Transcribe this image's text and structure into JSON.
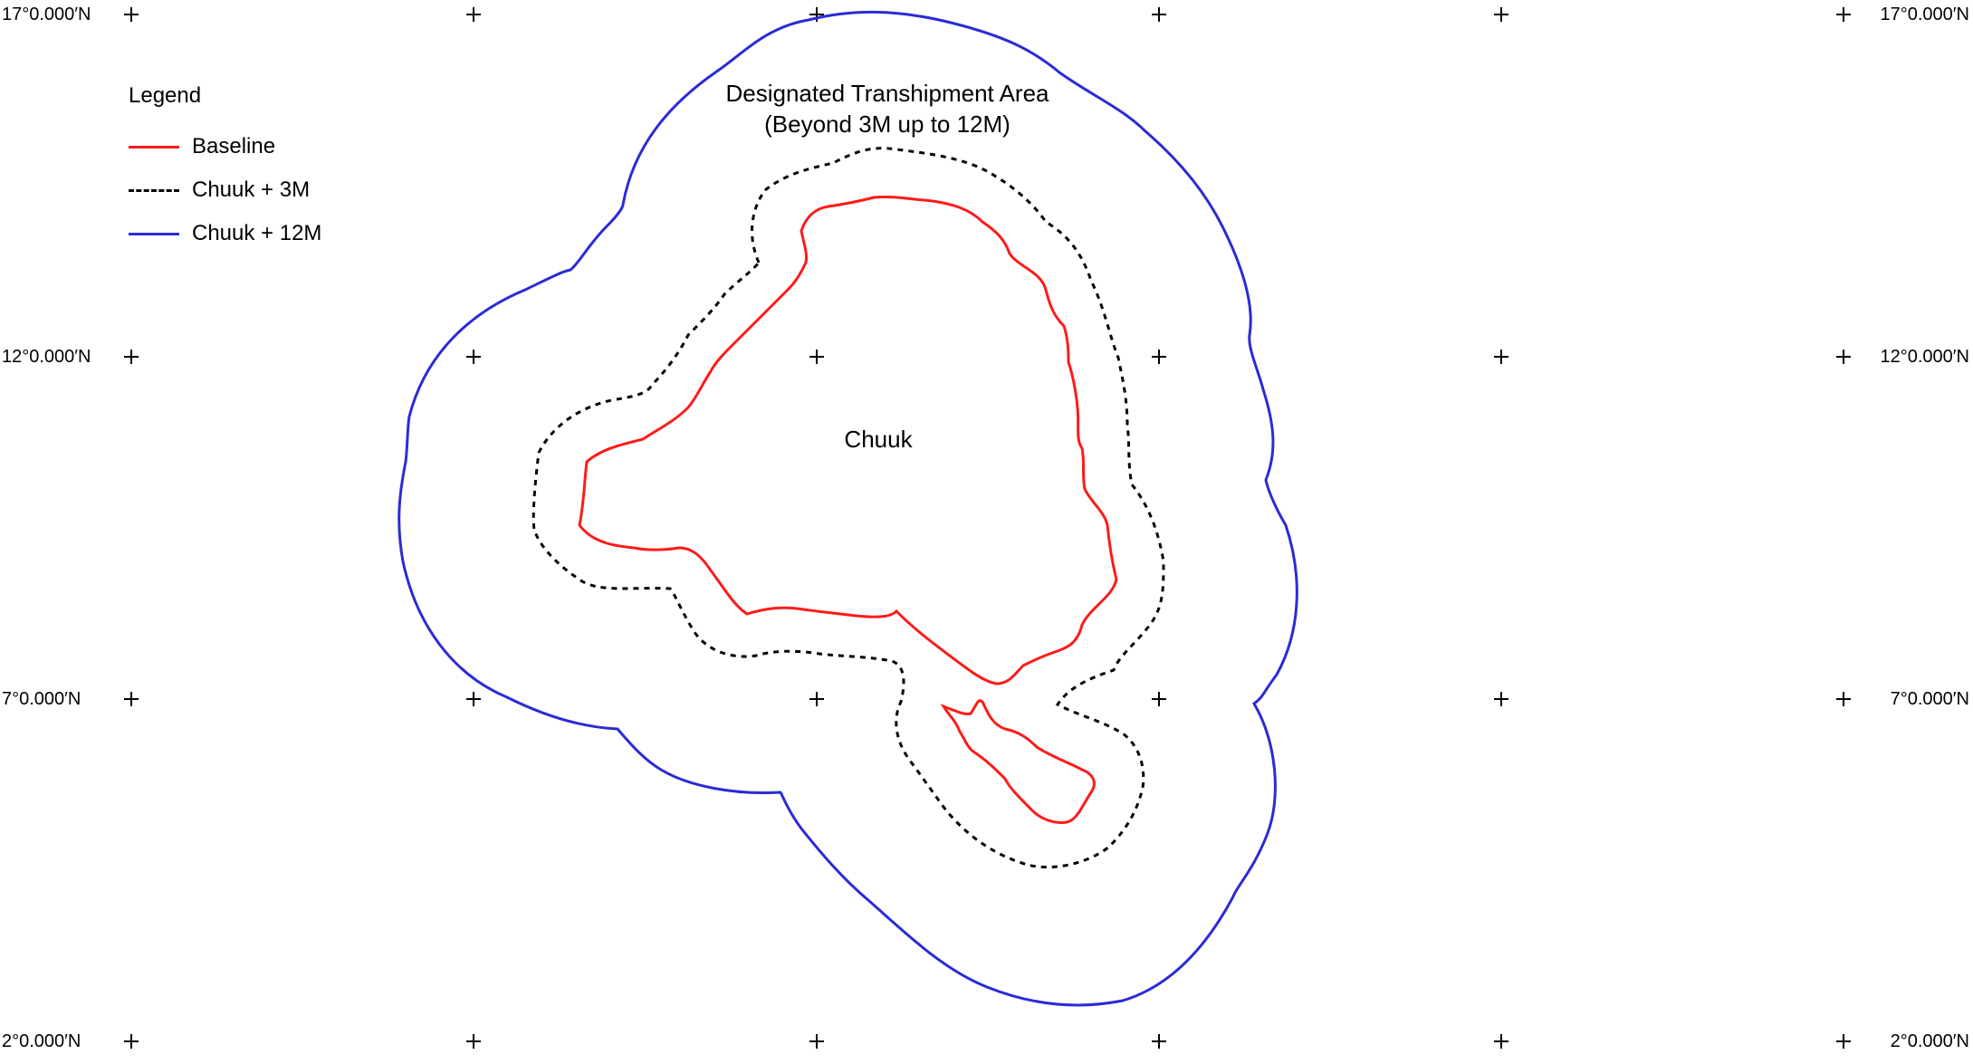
{
  "map": {
    "latitude_labels": [
      "17°0.000′N",
      "12°0.000′N",
      "7°0.000′N",
      "2°0.000′N"
    ],
    "legend": {
      "title": "Legend",
      "items": [
        {
          "label": "Baseline",
          "color": "#ff1a1a",
          "style": "solid"
        },
        {
          "label": "Chuuk + 3M",
          "color": "#000000",
          "style": "dashed"
        },
        {
          "label": "Chuuk + 12M",
          "color": "#2b2bd6",
          "style": "solid"
        }
      ]
    },
    "area_label": {
      "line1": "Designated Transhipment Area",
      "line2": "(Beyond 3M up to 12M)"
    },
    "island_label": "Chuuk",
    "colors": {
      "baseline": "#ff1a1a",
      "three_mile": "#000000",
      "twelve_mile": "#2b2bd6",
      "graticule": "#000000"
    }
  }
}
